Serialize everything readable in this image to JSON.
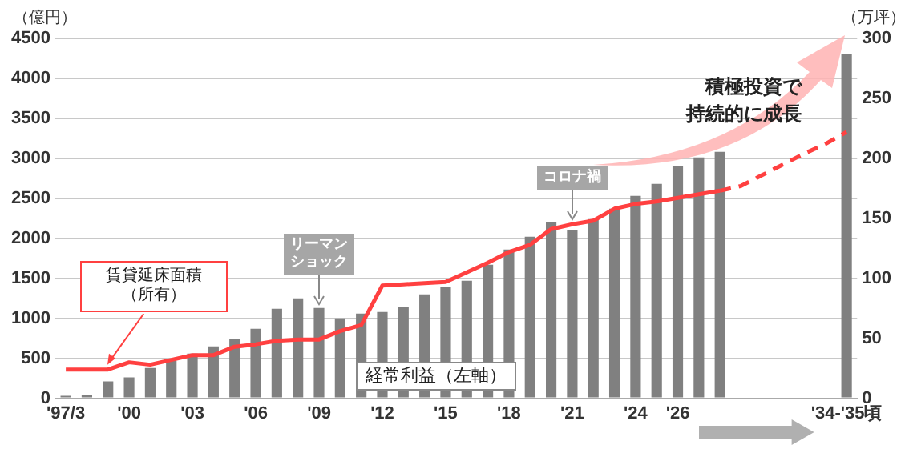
{
  "chart_data": {
    "type": "bar",
    "ylabel": "（億円）",
    "y2label": "（万坪）",
    "categories": [
      "'97/3",
      null,
      null,
      "'00",
      null,
      null,
      "'03",
      null,
      null,
      "'06",
      null,
      null,
      "'09",
      null,
      null,
      "'12",
      null,
      null,
      "'15",
      null,
      null,
      "'18",
      null,
      null,
      "'21",
      null,
      null,
      "'24",
      null,
      "'26",
      null,
      null,
      null,
      null,
      null,
      null,
      null,
      "'34-'35頃"
    ],
    "series": [
      {
        "name": "経常利益（左軸）",
        "color": "#808080",
        "values": [
          30,
          40,
          210,
          260,
          380,
          470,
          560,
          650,
          740,
          870,
          1120,
          1250,
          1130,
          1000,
          1060,
          1080,
          1140,
          1300,
          1390,
          1470,
          1670,
          1860,
          2020,
          2200,
          2100,
          2240,
          2370,
          2530,
          2680,
          2900,
          3010,
          3080,
          null,
          null,
          null,
          null,
          null,
          4300
        ]
      },
      {
        "name": "賃貸延床面積（所有）",
        "type": "line",
        "axis": "y2",
        "color": "#ff4040",
        "line_style": "solid",
        "values": [
          24,
          24,
          24,
          30,
          28,
          32,
          36,
          36,
          43,
          45,
          48,
          49,
          49,
          56,
          61,
          94,
          95,
          96,
          97,
          105,
          113,
          122,
          128,
          141,
          145,
          148,
          158,
          162,
          164,
          167,
          170,
          173,
          null,
          null,
          null,
          null,
          null,
          null
        ]
      },
      {
        "type": "line",
        "axis": "y2",
        "color": "#ff4040",
        "line_style": "dashed",
        "values": [
          null,
          null,
          null,
          null,
          null,
          null,
          null,
          null,
          null,
          null,
          null,
          null,
          null,
          null,
          null,
          null,
          null,
          null,
          null,
          null,
          null,
          null,
          null,
          null,
          null,
          null,
          null,
          null,
          null,
          null,
          null,
          173,
          177,
          186,
          195,
          204,
          212,
          222
        ]
      }
    ],
    "ylim": [
      0,
      4500
    ],
    "yticks": [
      0,
      500,
      1000,
      1500,
      2000,
      2500,
      3000,
      3500,
      4000,
      4500
    ],
    "y2lim": [
      0,
      300
    ],
    "y2ticks": [
      0,
      50,
      100,
      150,
      200,
      250,
      300
    ],
    "grid": "y",
    "legend": false,
    "marker": "none",
    "annotations": [
      {
        "text": "リーマンショック",
        "x": "'09",
        "y": 1130
      },
      {
        "text": "コロナ禍",
        "x": "'21",
        "y": 2200
      },
      "積極投資で持続的に成長"
    ]
  }
}
